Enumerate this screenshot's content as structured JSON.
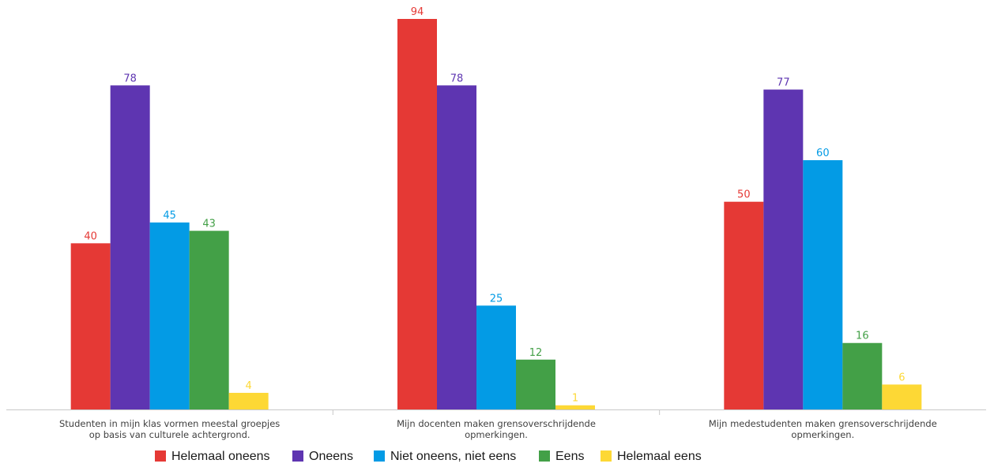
{
  "chart_data": {
    "type": "bar",
    "categories": [
      [
        "Studenten in mijn klas vormen meestal groepjes",
        "op basis van culturele achtergrond."
      ],
      [
        "Mijn docenten maken grensoverschrijdende",
        "opmerkingen."
      ],
      [
        "Mijn medestudenten maken grensoverschrijdende",
        "opmerkingen."
      ]
    ],
    "series": [
      {
        "name": "Helemaal oneens",
        "color": "#e53935",
        "values": [
          40,
          94,
          50
        ]
      },
      {
        "name": "Oneens",
        "color": "#5e35b1",
        "values": [
          78,
          78,
          77
        ]
      },
      {
        "name": "Niet oneens, niet eens",
        "color": "#039be5",
        "values": [
          45,
          25,
          60
        ]
      },
      {
        "name": "Eens",
        "color": "#43a047",
        "values": [
          43,
          12,
          16
        ]
      },
      {
        "name": "Helemaal eens",
        "color": "#fdd835",
        "values": [
          4,
          1,
          6
        ]
      }
    ],
    "ylim": [
      0,
      94
    ],
    "grid": false,
    "data_labels": true,
    "legend_position": "bottom"
  }
}
